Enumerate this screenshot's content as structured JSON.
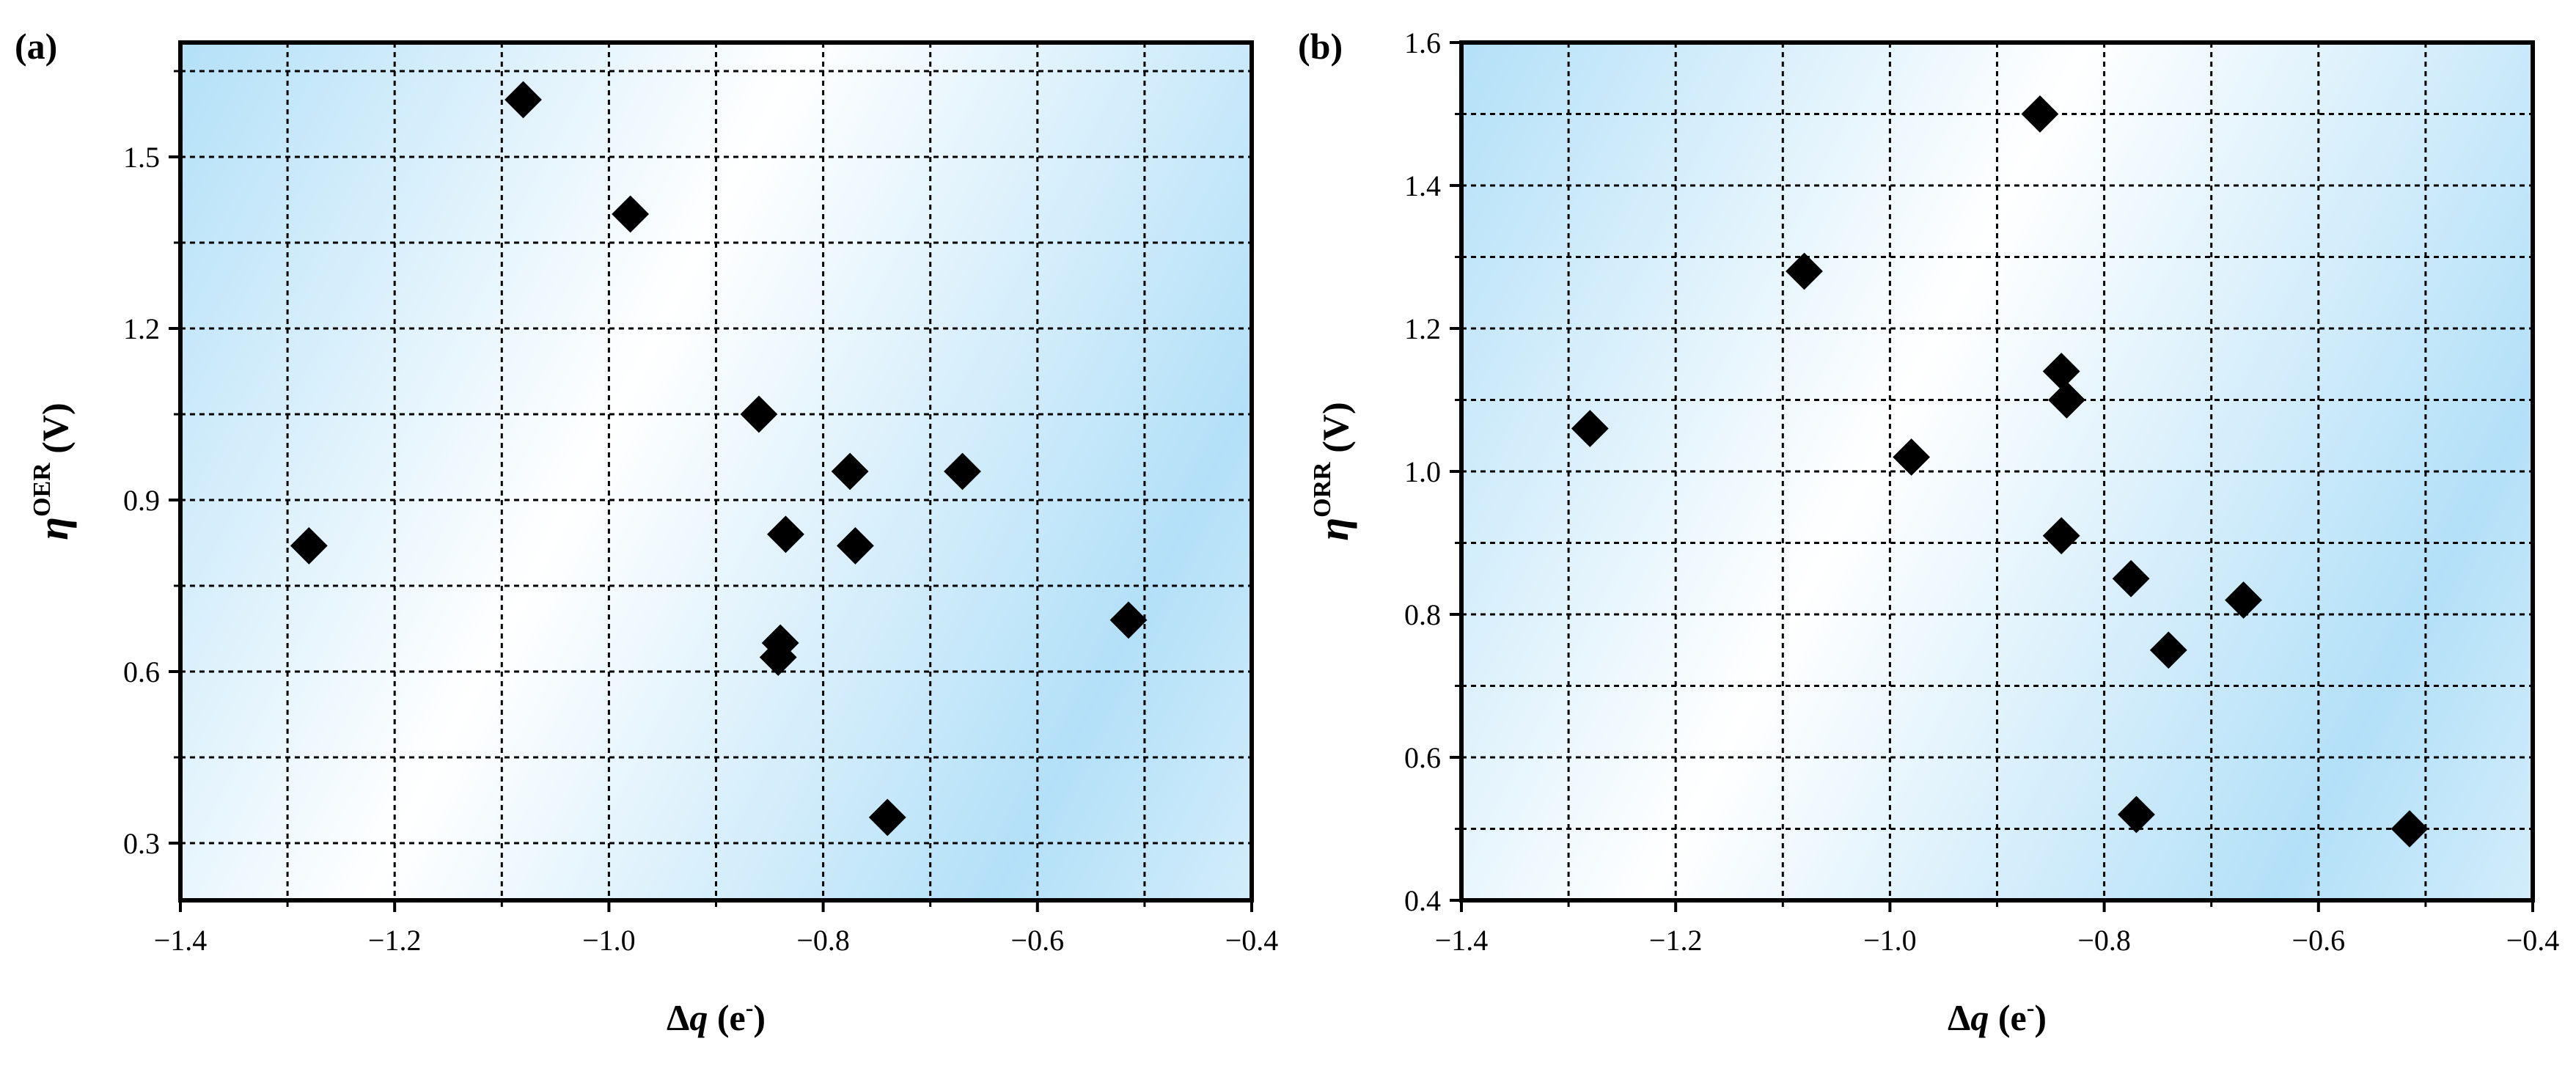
{
  "chart_data": [
    {
      "type": "scatter",
      "panel_label": "(a)",
      "xlabel": {
        "prefix": "Δ",
        "var": "q",
        "unit": " (e",
        "sup": "-",
        "close": ")"
      },
      "ylabel": {
        "sym": "η",
        "sup": "OER",
        "unit": " (V)"
      },
      "xlim": [
        -1.4,
        -0.4
      ],
      "ylim": [
        0.2,
        1.7
      ],
      "xticks": [
        -1.4,
        -1.2,
        -1.0,
        -0.8,
        -0.6,
        -0.4
      ],
      "xtick_labels": [
        "−1.4",
        "−1.2",
        "−1.0",
        "−0.8",
        "−0.6",
        "−0.4"
      ],
      "yticks": [
        0.3,
        0.6,
        0.9,
        1.2,
        1.5
      ],
      "ytick_labels": [
        "0.3",
        "0.6",
        "0.9",
        "1.2",
        "1.5"
      ],
      "grid": true,
      "marker": "diamond",
      "marker_color": "#000000",
      "background_gradient": [
        "#ffffff",
        "#b3e0f8"
      ],
      "points": [
        [
          -1.28,
          0.82
        ],
        [
          -1.08,
          1.6
        ],
        [
          -0.98,
          1.4
        ],
        [
          -0.86,
          1.05
        ],
        [
          -0.835,
          0.84
        ],
        [
          -0.84,
          0.65
        ],
        [
          -0.842,
          0.625
        ],
        [
          -0.775,
          0.95
        ],
        [
          -0.77,
          0.82
        ],
        [
          -0.74,
          0.345
        ],
        [
          -0.67,
          0.95
        ],
        [
          -0.515,
          0.69
        ]
      ]
    },
    {
      "type": "scatter",
      "panel_label": "(b)",
      "xlabel": {
        "prefix": "Δ",
        "var": "q",
        "unit": " (e",
        "sup": "-",
        "close": ")"
      },
      "ylabel": {
        "sym": "η",
        "sup": "ORR",
        "unit": " (V)"
      },
      "xlim": [
        -1.4,
        -0.4
      ],
      "ylim": [
        0.4,
        1.6
      ],
      "xticks": [
        -1.4,
        -1.2,
        -1.0,
        -0.8,
        -0.6,
        -0.4
      ],
      "xtick_labels": [
        "−1.4",
        "−1.2",
        "−1.0",
        "−0.8",
        "−0.6",
        "−0.4"
      ],
      "yticks": [
        0.4,
        0.6,
        0.8,
        1.0,
        1.2,
        1.4,
        1.6
      ],
      "ytick_labels": [
        "0.4",
        "0.6",
        "0.8",
        "1.0",
        "1.2",
        "1.4",
        "1.6"
      ],
      "grid": true,
      "marker": "diamond",
      "marker_color": "#000000",
      "background_gradient": [
        "#ffffff",
        "#b3e0f8"
      ],
      "points": [
        [
          -1.28,
          1.06
        ],
        [
          -1.08,
          1.28
        ],
        [
          -0.98,
          1.02
        ],
        [
          -0.86,
          1.5
        ],
        [
          -0.84,
          1.14
        ],
        [
          -0.835,
          1.1
        ],
        [
          -0.84,
          0.91
        ],
        [
          -0.775,
          0.85
        ],
        [
          -0.77,
          0.52
        ],
        [
          -0.74,
          0.75
        ],
        [
          -0.67,
          0.82
        ],
        [
          -0.515,
          0.5
        ]
      ]
    }
  ]
}
